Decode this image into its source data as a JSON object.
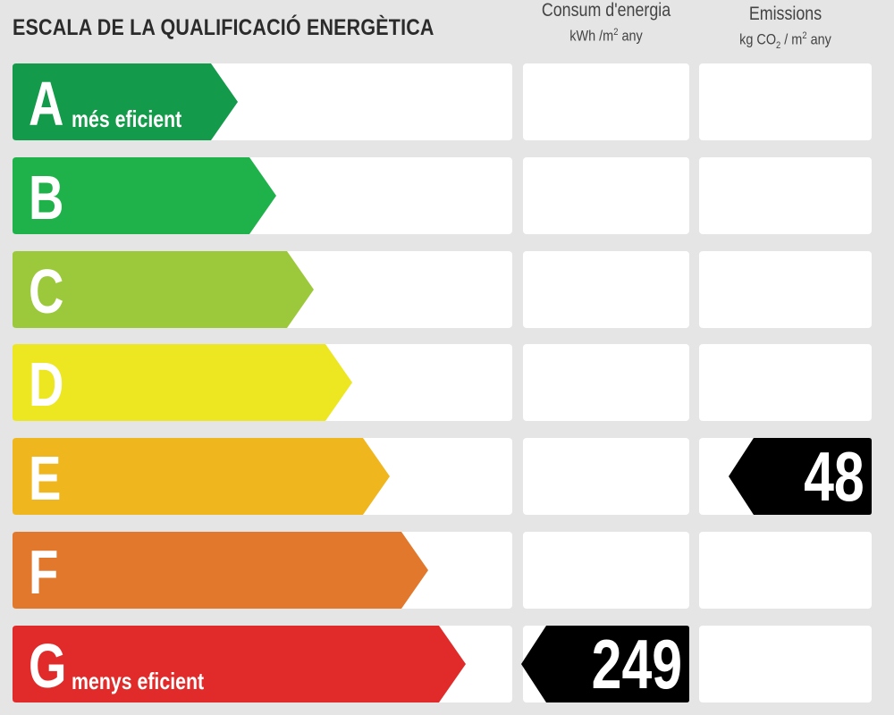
{
  "title": "ESCALA DE LA QUALIFICACIÓ ENERGÈTICA",
  "columns": {
    "energy": {
      "label": "Consum d'energia",
      "unit_prefix": "kWh /m",
      "unit_exp": "2",
      "unit_suffix": " any"
    },
    "emissions": {
      "label": "Emissions",
      "unit_prefix": "kg CO",
      "unit_sub": "2",
      "unit_mid": " / m",
      "unit_exp": "2",
      "unit_suffix": " any"
    }
  },
  "classes": [
    {
      "letter": "A",
      "label": "més eficient",
      "color": "#139a4a"
    },
    {
      "letter": "B",
      "label": "",
      "color": "#20b24a"
    },
    {
      "letter": "C",
      "label": "",
      "color": "#9cc93b"
    },
    {
      "letter": "D",
      "label": "",
      "color": "#ece720"
    },
    {
      "letter": "E",
      "label": "",
      "color": "#f0b61e"
    },
    {
      "letter": "F",
      "label": "",
      "color": "#e1782b"
    },
    {
      "letter": "G",
      "label": "menys eficient",
      "color": "#e12b2a"
    }
  ],
  "ratings": {
    "energy": {
      "class": "G",
      "value": "249"
    },
    "emissions": {
      "class": "E",
      "value": "48"
    }
  },
  "marker_color": "#000000"
}
